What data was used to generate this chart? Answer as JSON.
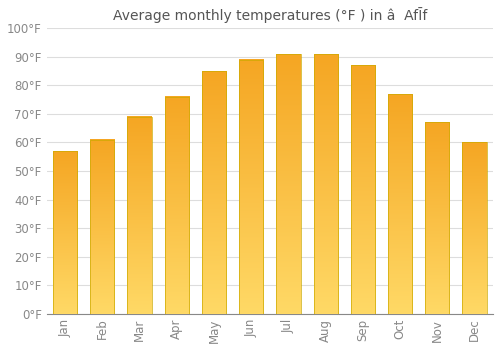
{
  "title": "Average monthly temperatures (°F ) in â  AfĪf",
  "months": [
    "Jan",
    "Feb",
    "Mar",
    "Apr",
    "May",
    "Jun",
    "Jul",
    "Aug",
    "Sep",
    "Oct",
    "Nov",
    "Dec"
  ],
  "values": [
    57,
    61,
    69,
    76,
    85,
    89,
    91,
    91,
    87,
    77,
    67,
    60
  ],
  "bar_color_top": "#F5A623",
  "bar_color_bottom": "#FFD966",
  "ylim": [
    0,
    100
  ],
  "yticks": [
    0,
    10,
    20,
    30,
    40,
    50,
    60,
    70,
    80,
    90,
    100
  ],
  "ytick_labels": [
    "0°F",
    "10°F",
    "20°F",
    "30°F",
    "40°F",
    "50°F",
    "60°F",
    "70°F",
    "80°F",
    "90°F",
    "100°F"
  ],
  "background_color": "#FFFFFF",
  "grid_color": "#DDDDDD",
  "title_fontsize": 10,
  "tick_fontsize": 8.5,
  "bar_width": 0.65
}
